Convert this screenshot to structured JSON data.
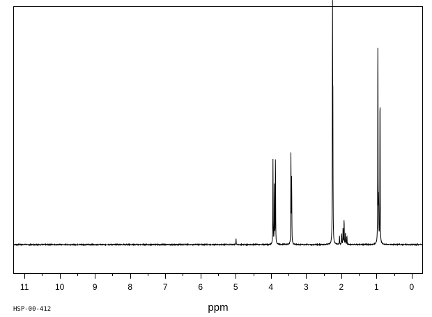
{
  "chart_data": {
    "type": "line",
    "title": "",
    "xlabel": "ppm",
    "ylabel": "",
    "x_reversed": true,
    "xlim": [
      11.3,
      -0.3
    ],
    "ylim": [
      -0.12,
      1.0
    ],
    "major_ticks": [
      11,
      10,
      9,
      8,
      7,
      6,
      5,
      4,
      3,
      2,
      1,
      0
    ],
    "minor_ticks": [
      10.5,
      9.5,
      8.5,
      7.5,
      6.5,
      5.5,
      4.5,
      3.5,
      2.5,
      1.5,
      0.5
    ],
    "grid": false,
    "legend": "none",
    "baseline": 0,
    "series": [
      {
        "peaks": [
          {
            "ppm": 4.99,
            "height": 0.025
          },
          {
            "ppm": 3.94,
            "height": 0.38
          },
          {
            "ppm": 3.9,
            "height": 0.27
          },
          {
            "ppm": 3.87,
            "height": 0.41
          },
          {
            "ppm": 3.43,
            "height": 0.41
          },
          {
            "ppm": 3.41,
            "height": 0.3
          },
          {
            "ppm": 2.25,
            "height": 0.99
          },
          {
            "ppm": 2.24,
            "height": 0.57
          },
          {
            "ppm": 2.05,
            "height": 0.035
          },
          {
            "ppm": 1.99,
            "height": 0.05
          },
          {
            "ppm": 1.95,
            "height": 0.075
          },
          {
            "ppm": 1.92,
            "height": 0.12
          },
          {
            "ppm": 1.88,
            "height": 0.06
          },
          {
            "ppm": 1.84,
            "height": 0.04
          },
          {
            "ppm": 0.96,
            "height": 0.97
          },
          {
            "ppm": 0.94,
            "height": 0.19
          },
          {
            "ppm": 0.9,
            "height": 0.73
          }
        ]
      }
    ]
  },
  "footer": {
    "code": "HSP-00-412"
  }
}
